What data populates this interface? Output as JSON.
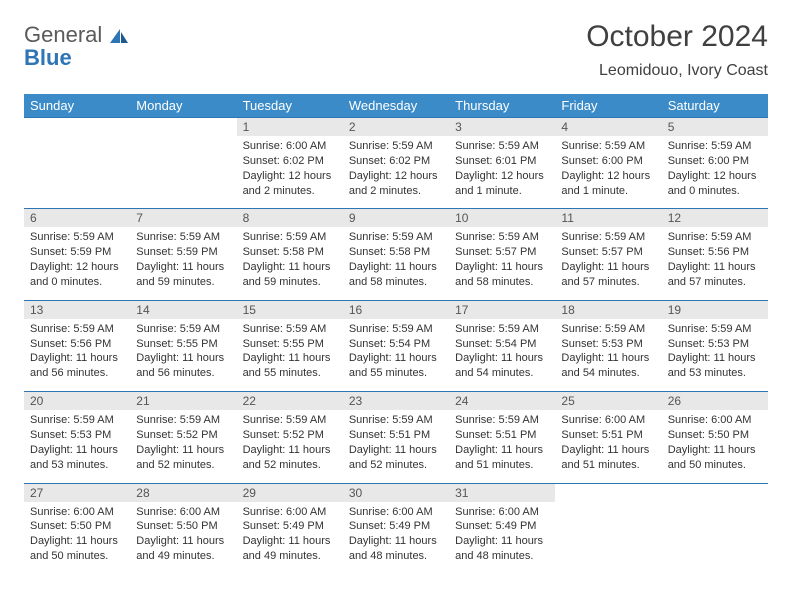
{
  "brand": {
    "word1": "General",
    "word2": "Blue"
  },
  "colors": {
    "header_bg": "#3b8bc8",
    "header_text": "#ffffff",
    "daynum_bg": "#e8e8e8",
    "rule": "#2e75b6",
    "text": "#333333",
    "logo_gray": "#5a5a5a",
    "logo_blue": "#2e75b6",
    "page_bg": "#ffffff"
  },
  "typography": {
    "title_fontsize": 30,
    "location_fontsize": 16,
    "header_fontsize": 13,
    "daynum_fontsize": 12,
    "cell_fontsize": 11
  },
  "title": "October 2024",
  "location": "Leomidouo, Ivory Coast",
  "day_headers": [
    "Sunday",
    "Monday",
    "Tuesday",
    "Wednesday",
    "Thursday",
    "Friday",
    "Saturday"
  ],
  "weeks": [
    [
      null,
      null,
      {
        "n": "1",
        "sr": "Sunrise: 6:00 AM",
        "ss": "Sunset: 6:02 PM",
        "d1": "Daylight: 12 hours",
        "d2": "and 2 minutes."
      },
      {
        "n": "2",
        "sr": "Sunrise: 5:59 AM",
        "ss": "Sunset: 6:02 PM",
        "d1": "Daylight: 12 hours",
        "d2": "and 2 minutes."
      },
      {
        "n": "3",
        "sr": "Sunrise: 5:59 AM",
        "ss": "Sunset: 6:01 PM",
        "d1": "Daylight: 12 hours",
        "d2": "and 1 minute."
      },
      {
        "n": "4",
        "sr": "Sunrise: 5:59 AM",
        "ss": "Sunset: 6:00 PM",
        "d1": "Daylight: 12 hours",
        "d2": "and 1 minute."
      },
      {
        "n": "5",
        "sr": "Sunrise: 5:59 AM",
        "ss": "Sunset: 6:00 PM",
        "d1": "Daylight: 12 hours",
        "d2": "and 0 minutes."
      }
    ],
    [
      {
        "n": "6",
        "sr": "Sunrise: 5:59 AM",
        "ss": "Sunset: 5:59 PM",
        "d1": "Daylight: 12 hours",
        "d2": "and 0 minutes."
      },
      {
        "n": "7",
        "sr": "Sunrise: 5:59 AM",
        "ss": "Sunset: 5:59 PM",
        "d1": "Daylight: 11 hours",
        "d2": "and 59 minutes."
      },
      {
        "n": "8",
        "sr": "Sunrise: 5:59 AM",
        "ss": "Sunset: 5:58 PM",
        "d1": "Daylight: 11 hours",
        "d2": "and 59 minutes."
      },
      {
        "n": "9",
        "sr": "Sunrise: 5:59 AM",
        "ss": "Sunset: 5:58 PM",
        "d1": "Daylight: 11 hours",
        "d2": "and 58 minutes."
      },
      {
        "n": "10",
        "sr": "Sunrise: 5:59 AM",
        "ss": "Sunset: 5:57 PM",
        "d1": "Daylight: 11 hours",
        "d2": "and 58 minutes."
      },
      {
        "n": "11",
        "sr": "Sunrise: 5:59 AM",
        "ss": "Sunset: 5:57 PM",
        "d1": "Daylight: 11 hours",
        "d2": "and 57 minutes."
      },
      {
        "n": "12",
        "sr": "Sunrise: 5:59 AM",
        "ss": "Sunset: 5:56 PM",
        "d1": "Daylight: 11 hours",
        "d2": "and 57 minutes."
      }
    ],
    [
      {
        "n": "13",
        "sr": "Sunrise: 5:59 AM",
        "ss": "Sunset: 5:56 PM",
        "d1": "Daylight: 11 hours",
        "d2": "and 56 minutes."
      },
      {
        "n": "14",
        "sr": "Sunrise: 5:59 AM",
        "ss": "Sunset: 5:55 PM",
        "d1": "Daylight: 11 hours",
        "d2": "and 56 minutes."
      },
      {
        "n": "15",
        "sr": "Sunrise: 5:59 AM",
        "ss": "Sunset: 5:55 PM",
        "d1": "Daylight: 11 hours",
        "d2": "and 55 minutes."
      },
      {
        "n": "16",
        "sr": "Sunrise: 5:59 AM",
        "ss": "Sunset: 5:54 PM",
        "d1": "Daylight: 11 hours",
        "d2": "and 55 minutes."
      },
      {
        "n": "17",
        "sr": "Sunrise: 5:59 AM",
        "ss": "Sunset: 5:54 PM",
        "d1": "Daylight: 11 hours",
        "d2": "and 54 minutes."
      },
      {
        "n": "18",
        "sr": "Sunrise: 5:59 AM",
        "ss": "Sunset: 5:53 PM",
        "d1": "Daylight: 11 hours",
        "d2": "and 54 minutes."
      },
      {
        "n": "19",
        "sr": "Sunrise: 5:59 AM",
        "ss": "Sunset: 5:53 PM",
        "d1": "Daylight: 11 hours",
        "d2": "and 53 minutes."
      }
    ],
    [
      {
        "n": "20",
        "sr": "Sunrise: 5:59 AM",
        "ss": "Sunset: 5:53 PM",
        "d1": "Daylight: 11 hours",
        "d2": "and 53 minutes."
      },
      {
        "n": "21",
        "sr": "Sunrise: 5:59 AM",
        "ss": "Sunset: 5:52 PM",
        "d1": "Daylight: 11 hours",
        "d2": "and 52 minutes."
      },
      {
        "n": "22",
        "sr": "Sunrise: 5:59 AM",
        "ss": "Sunset: 5:52 PM",
        "d1": "Daylight: 11 hours",
        "d2": "and 52 minutes."
      },
      {
        "n": "23",
        "sr": "Sunrise: 5:59 AM",
        "ss": "Sunset: 5:51 PM",
        "d1": "Daylight: 11 hours",
        "d2": "and 52 minutes."
      },
      {
        "n": "24",
        "sr": "Sunrise: 5:59 AM",
        "ss": "Sunset: 5:51 PM",
        "d1": "Daylight: 11 hours",
        "d2": "and 51 minutes."
      },
      {
        "n": "25",
        "sr": "Sunrise: 6:00 AM",
        "ss": "Sunset: 5:51 PM",
        "d1": "Daylight: 11 hours",
        "d2": "and 51 minutes."
      },
      {
        "n": "26",
        "sr": "Sunrise: 6:00 AM",
        "ss": "Sunset: 5:50 PM",
        "d1": "Daylight: 11 hours",
        "d2": "and 50 minutes."
      }
    ],
    [
      {
        "n": "27",
        "sr": "Sunrise: 6:00 AM",
        "ss": "Sunset: 5:50 PM",
        "d1": "Daylight: 11 hours",
        "d2": "and 50 minutes."
      },
      {
        "n": "28",
        "sr": "Sunrise: 6:00 AM",
        "ss": "Sunset: 5:50 PM",
        "d1": "Daylight: 11 hours",
        "d2": "and 49 minutes."
      },
      {
        "n": "29",
        "sr": "Sunrise: 6:00 AM",
        "ss": "Sunset: 5:49 PM",
        "d1": "Daylight: 11 hours",
        "d2": "and 49 minutes."
      },
      {
        "n": "30",
        "sr": "Sunrise: 6:00 AM",
        "ss": "Sunset: 5:49 PM",
        "d1": "Daylight: 11 hours",
        "d2": "and 48 minutes."
      },
      {
        "n": "31",
        "sr": "Sunrise: 6:00 AM",
        "ss": "Sunset: 5:49 PM",
        "d1": "Daylight: 11 hours",
        "d2": "and 48 minutes."
      },
      null,
      null
    ]
  ]
}
